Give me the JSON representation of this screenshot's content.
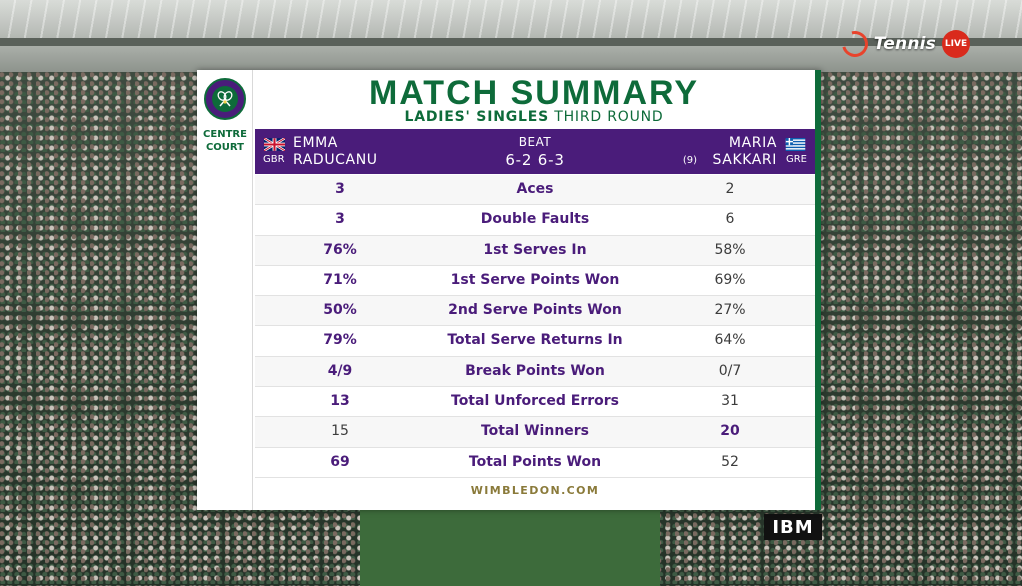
{
  "broadcaster": {
    "name": "Tennis",
    "badge": "LIVE"
  },
  "sponsor": "IBM",
  "venue": {
    "court_line1": "CENTRE",
    "court_line2": "COURT"
  },
  "summary": {
    "title": "MATCH SUMMARY",
    "event": "LADIES' SINGLES",
    "round": "THIRD ROUND",
    "result_word": "BEAT",
    "score": "6-2 6-3",
    "footer": "WIMBLEDON.COM"
  },
  "player1": {
    "first": "EMMA",
    "last": "RADUCANU",
    "country": "GBR"
  },
  "player2": {
    "first": "MARIA",
    "last": "SAKKARI",
    "country": "GRE",
    "seed": "(9)"
  },
  "stats": [
    {
      "label": "Aces",
      "p1": "3",
      "p2": "2",
      "leader": "p1"
    },
    {
      "label": "Double Faults",
      "p1": "3",
      "p2": "6",
      "leader": "p1"
    },
    {
      "label": "1st Serves In",
      "p1": "76%",
      "p2": "58%",
      "leader": "p1"
    },
    {
      "label": "1st Serve Points Won",
      "p1": "71%",
      "p2": "69%",
      "leader": "p1"
    },
    {
      "label": "2nd Serve Points Won",
      "p1": "50%",
      "p2": "27%",
      "leader": "p1"
    },
    {
      "label": "Total Serve Returns In",
      "p1": "79%",
      "p2": "64%",
      "leader": "p1"
    },
    {
      "label": "Break Points Won",
      "p1": "4/9",
      "p2": "0/7",
      "leader": "p1"
    },
    {
      "label": "Total Unforced Errors",
      "p1": "13",
      "p2": "31",
      "leader": "p1"
    },
    {
      "label": "Total Winners",
      "p1": "15",
      "p2": "20",
      "leader": "p2"
    },
    {
      "label": "Total Points Won",
      "p1": "69",
      "p2": "52",
      "leader": "p1"
    }
  ],
  "colors": {
    "purple": "#4a1c7a",
    "green": "#0e6b3a",
    "white": "#ffffff"
  }
}
